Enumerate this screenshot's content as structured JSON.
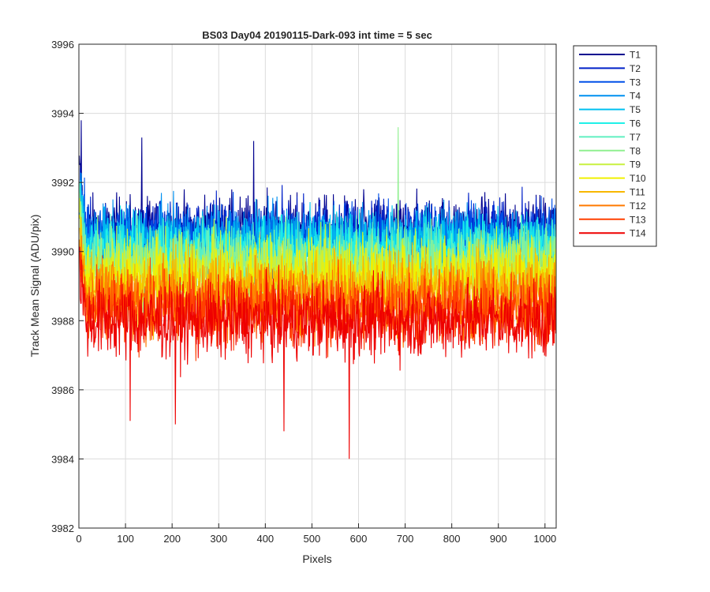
{
  "chart_data": {
    "type": "line",
    "title": "BS03 Day04 20190115-Dark-093 int time = 5 sec",
    "xlabel": "Pixels",
    "ylabel": "Track Mean Signal (ADU/pix)",
    "xlim": [
      0,
      1024
    ],
    "ylim": [
      3982,
      3996
    ],
    "xticks": [
      0,
      100,
      200,
      300,
      400,
      500,
      600,
      700,
      800,
      900,
      1000
    ],
    "yticks": [
      3982,
      3984,
      3986,
      3988,
      3990,
      3992,
      3994,
      3996
    ],
    "grid": true,
    "legend_position": "outside-top-right",
    "x_count": 1024,
    "series": [
      {
        "name": "T1",
        "color": "#00008f",
        "mean": 3990.6,
        "noise": 0.9
      },
      {
        "name": "T2",
        "color": "#0020c8",
        "mean": 3990.5,
        "noise": 0.9
      },
      {
        "name": "T3",
        "color": "#0050e8",
        "mean": 3990.4,
        "noise": 0.9
      },
      {
        "name": "T4",
        "color": "#0090f0",
        "mean": 3990.3,
        "noise": 0.9
      },
      {
        "name": "T5",
        "color": "#00c0f0",
        "mean": 3990.2,
        "noise": 0.9
      },
      {
        "name": "T6",
        "color": "#20f0e8",
        "mean": 3990.0,
        "noise": 0.9
      },
      {
        "name": "T7",
        "color": "#60f0c0",
        "mean": 3989.8,
        "noise": 0.95
      },
      {
        "name": "T8",
        "color": "#90f090",
        "mean": 3989.6,
        "noise": 0.95
      },
      {
        "name": "T9",
        "color": "#c8f040",
        "mean": 3989.4,
        "noise": 1.0
      },
      {
        "name": "T10",
        "color": "#f0f000",
        "mean": 3989.2,
        "noise": 1.0
      },
      {
        "name": "T11",
        "color": "#f8b800",
        "mean": 3988.9,
        "noise": 1.0
      },
      {
        "name": "T12",
        "color": "#ff7a00",
        "mean": 3988.6,
        "noise": 1.0
      },
      {
        "name": "T13",
        "color": "#ff4000",
        "mean": 3988.3,
        "noise": 1.0
      },
      {
        "name": "T14",
        "color": "#ee0000",
        "mean": 3988.0,
        "noise": 1.0
      }
    ],
    "spikes": [
      {
        "series": "T14",
        "x": 580,
        "y": 3984.0
      },
      {
        "series": "T14",
        "x": 440,
        "y": 3984.8
      },
      {
        "series": "T14",
        "x": 207,
        "y": 3985.0
      },
      {
        "series": "T14",
        "x": 110,
        "y": 3985.1
      },
      {
        "series": "T1",
        "x": 5,
        "y": 3993.8
      },
      {
        "series": "T1",
        "x": 135,
        "y": 3993.3
      },
      {
        "series": "T1",
        "x": 375,
        "y": 3993.2
      },
      {
        "series": "T8",
        "x": 685,
        "y": 3993.6
      }
    ]
  }
}
